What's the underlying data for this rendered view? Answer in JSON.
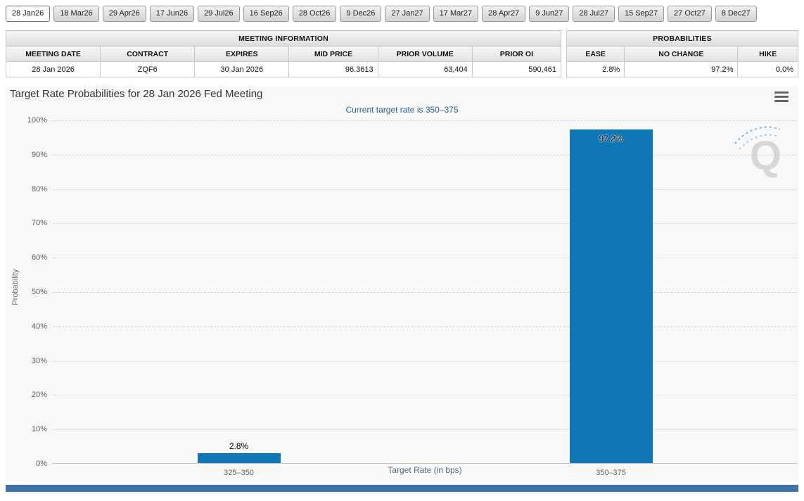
{
  "tabs": {
    "items": [
      {
        "label": "28 Jan26",
        "selected": true
      },
      {
        "label": "18 Mar26",
        "selected": false
      },
      {
        "label": "29 Apr26",
        "selected": false
      },
      {
        "label": "17 Jun26",
        "selected": false
      },
      {
        "label": "29 Jul26",
        "selected": false
      },
      {
        "label": "16 Sep26",
        "selected": false
      },
      {
        "label": "28 Oct26",
        "selected": false
      },
      {
        "label": "9 Dec26",
        "selected": false
      },
      {
        "label": "27 Jan27",
        "selected": false
      },
      {
        "label": "17 Mar27",
        "selected": false
      },
      {
        "label": "28 Apr27",
        "selected": false
      },
      {
        "label": "9 Jun27",
        "selected": false
      },
      {
        "label": "28 Jul27",
        "selected": false
      },
      {
        "label": "15 Sep27",
        "selected": false
      },
      {
        "label": "27 Oct27",
        "selected": false
      },
      {
        "label": "8 Dec27",
        "selected": false
      }
    ]
  },
  "meeting_info": {
    "title": "MEETING INFORMATION",
    "columns": [
      "MEETING DATE",
      "CONTRACT",
      "EXPIRES",
      "MID PRICE",
      "PRIOR VOLUME",
      "PRIOR OI"
    ],
    "row": [
      "28 Jan 2026",
      "ZQF6",
      "30 Jan 2026",
      "96.3613",
      "63,404",
      "590,461"
    ]
  },
  "probabilities": {
    "title": "PROBABILITIES",
    "columns": [
      "EASE",
      "NO CHANGE",
      "HIKE"
    ],
    "row": [
      "2.8%",
      "97.2%",
      "0.0%"
    ]
  },
  "chart_data": {
    "type": "bar",
    "title": "Target Rate Probabilities for 28 Jan 2026 Fed Meeting",
    "subtitle": "Current target rate is 350–375",
    "categories": [
      "325–350",
      "350–375"
    ],
    "values": [
      2.8,
      97.2
    ],
    "value_labels": [
      "2.8%",
      "97.2%"
    ],
    "xlabel": "Target Rate (in bps)",
    "ylabel": "Probability",
    "ylim": [
      0,
      100
    ],
    "ytick_step": 10,
    "ytick_suffix": "%",
    "grid": true,
    "legend": "none",
    "bar_color": "#0d76b4",
    "watermark_letter": "Q"
  }
}
